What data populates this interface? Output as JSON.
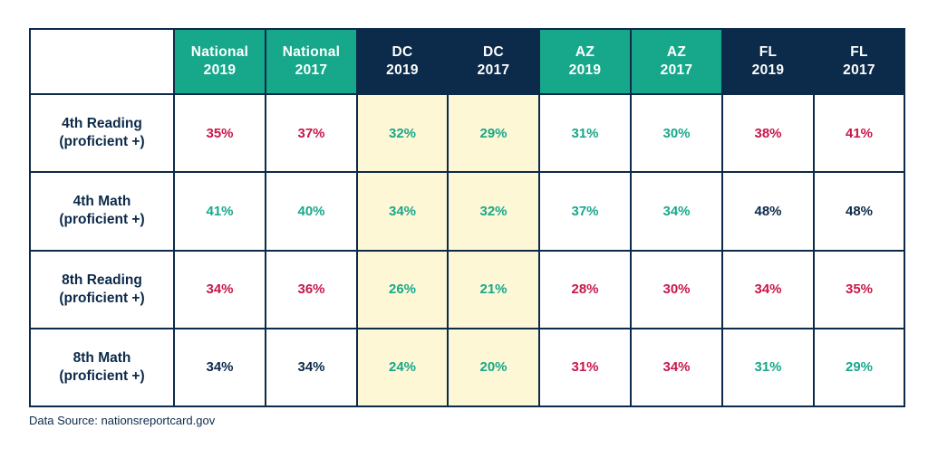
{
  "chart_data": {
    "type": "table",
    "columns": [
      {
        "line1": "National",
        "line2": "2019"
      },
      {
        "line1": "National",
        "line2": "2017"
      },
      {
        "line1": "DC",
        "line2": "2019"
      },
      {
        "line1": "DC",
        "line2": "2017"
      },
      {
        "line1": "AZ",
        "line2": "2019"
      },
      {
        "line1": "AZ",
        "line2": "2017"
      },
      {
        "line1": "FL",
        "line2": "2019"
      },
      {
        "line1": "FL",
        "line2": "2017"
      }
    ],
    "header_colors": [
      "#17a88b",
      "#17a88b",
      "#0c2a4a",
      "#0c2a4a",
      "#17a88b",
      "#17a88b",
      "#0c2a4a",
      "#0c2a4a"
    ],
    "highlighted_columns": [
      "DC 2019",
      "DC 2017"
    ],
    "rows": [
      {
        "line1": "4th Reading",
        "line2": "(proficient +)",
        "values": [
          "35%",
          "37%",
          "32%",
          "29%",
          "31%",
          "30%",
          "38%",
          "41%"
        ],
        "colors": [
          "#c8174a",
          "#c8174a",
          "#17a88b",
          "#17a88b",
          "#17a88b",
          "#17a88b",
          "#c8174a",
          "#c8174a"
        ]
      },
      {
        "line1": "4th Math",
        "line2": "(proficient +)",
        "values": [
          "41%",
          "40%",
          "34%",
          "32%",
          "37%",
          "34%",
          "48%",
          "48%"
        ],
        "colors": [
          "#17a88b",
          "#17a88b",
          "#17a88b",
          "#17a88b",
          "#17a88b",
          "#17a88b",
          "#0c2a4a",
          "#0c2a4a"
        ]
      },
      {
        "line1": "8th Reading",
        "line2": "(proficient +)",
        "values": [
          "34%",
          "36%",
          "26%",
          "21%",
          "28%",
          "30%",
          "34%",
          "35%"
        ],
        "colors": [
          "#c8174a",
          "#c8174a",
          "#17a88b",
          "#17a88b",
          "#c8174a",
          "#c8174a",
          "#c8174a",
          "#c8174a"
        ]
      },
      {
        "line1": "8th Math",
        "line2": "(proficient +)",
        "values": [
          "34%",
          "34%",
          "24%",
          "20%",
          "31%",
          "34%",
          "31%",
          "29%"
        ],
        "colors": [
          "#0c2a4a",
          "#0c2a4a",
          "#17a88b",
          "#17a88b",
          "#c8174a",
          "#c8174a",
          "#17a88b",
          "#17a88b"
        ]
      }
    ],
    "source": "Data Source: nationsreportcard.gov"
  }
}
